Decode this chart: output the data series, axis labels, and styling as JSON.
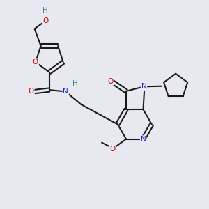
{
  "bg_color": "#e8e8f0",
  "bond_color": "#1a1a1a",
  "atom_colors": {
    "O": "#cc0000",
    "N": "#2222cc",
    "H": "#448888",
    "C": "#1a1a1a"
  },
  "figsize": [
    3.0,
    3.0
  ],
  "dpi": 100
}
